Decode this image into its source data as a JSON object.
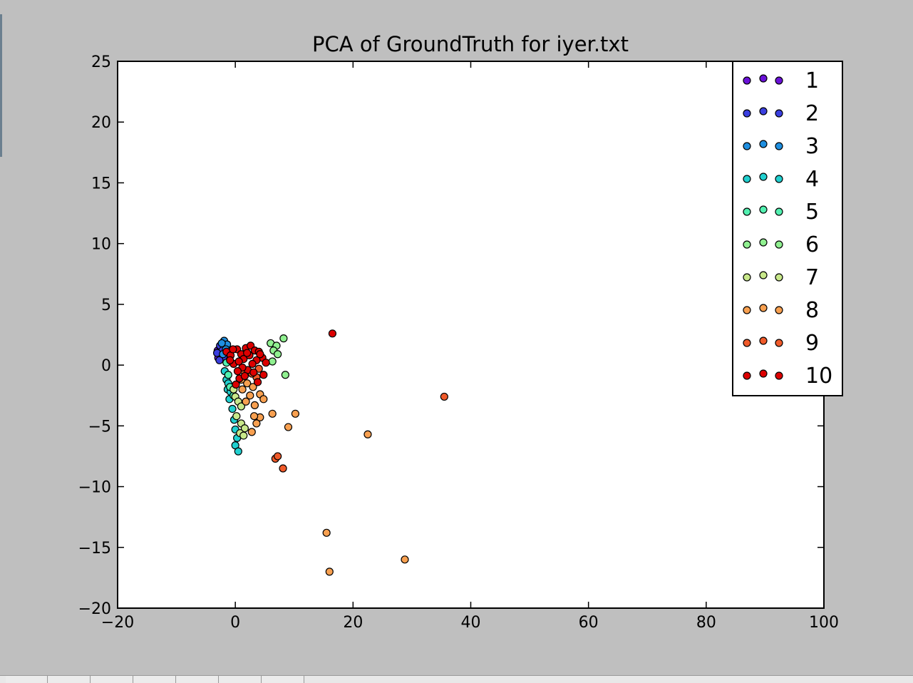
{
  "window": {
    "toolbar_buttons": 7
  },
  "chart_data": {
    "type": "scatter",
    "title": "PCA of GroundTruth for iyer.txt",
    "xlabel": "",
    "ylabel": "",
    "xlim": [
      -20,
      100
    ],
    "ylim": [
      -20,
      25
    ],
    "xticks": [
      "−20",
      "0",
      "20",
      "40",
      "60",
      "80",
      "100"
    ],
    "yticks": [
      "−20",
      "−15",
      "−10",
      "−5",
      "0",
      "5",
      "10",
      "15",
      "20",
      "25"
    ],
    "grid": false,
    "legend_position": "top-right",
    "series": [
      {
        "name": "1",
        "color": "#6a11d8",
        "points": [
          [
            -2.8,
            0.9
          ],
          [
            -3.0,
            1.2
          ],
          [
            -2.5,
            1.4
          ],
          [
            -2.9,
            0.6
          ]
        ]
      },
      {
        "name": "2",
        "color": "#3a3fe0",
        "points": [
          [
            -2.6,
            1.6
          ],
          [
            -2.2,
            1.2
          ],
          [
            -3.1,
            1.0
          ],
          [
            -2.0,
            0.7
          ],
          [
            -2.7,
            0.4
          ]
        ]
      },
      {
        "name": "3",
        "color": "#1f8fe0",
        "points": [
          [
            -1.9,
            2.0
          ],
          [
            -1.4,
            1.7
          ],
          [
            -2.3,
            1.8
          ],
          [
            -1.6,
            1.3
          ],
          [
            -2.1,
            0.9
          ]
        ]
      },
      {
        "name": "4",
        "color": "#21d0d0",
        "points": [
          [
            -1.8,
            -0.5
          ],
          [
            -1.5,
            -1.2
          ],
          [
            -1.3,
            -2.0
          ],
          [
            -1.0,
            -2.8
          ],
          [
            -0.5,
            -3.6
          ],
          [
            -0.2,
            -4.5
          ],
          [
            0.0,
            -5.3
          ],
          [
            0.3,
            -6.0
          ],
          [
            0.0,
            -6.6
          ],
          [
            0.5,
            -7.1
          ],
          [
            -1.2,
            -1.5
          ],
          [
            -0.8,
            -2.2
          ]
        ]
      },
      {
        "name": "5",
        "color": "#52f0b0",
        "points": [
          [
            -1.5,
            0.2
          ],
          [
            -1.2,
            -0.8
          ],
          [
            -0.9,
            -1.8
          ],
          [
            -0.3,
            -2.5
          ]
        ]
      },
      {
        "name": "6",
        "color": "#90f090",
        "points": [
          [
            6.0,
            1.8
          ],
          [
            7.0,
            1.6
          ],
          [
            8.2,
            2.2
          ],
          [
            6.5,
            1.2
          ],
          [
            7.2,
            0.9
          ],
          [
            6.3,
            0.3
          ],
          [
            8.5,
            -0.8
          ]
        ]
      },
      {
        "name": "7",
        "color": "#c8e88a",
        "points": [
          [
            0.0,
            -2.6
          ],
          [
            0.5,
            -3.0
          ],
          [
            1.0,
            -3.4
          ],
          [
            0.2,
            -4.2
          ],
          [
            1.0,
            -4.8
          ],
          [
            1.6,
            -5.2
          ],
          [
            0.8,
            -5.6
          ],
          [
            1.4,
            -5.8
          ],
          [
            -0.3,
            -2.0
          ]
        ]
      },
      {
        "name": "8",
        "color": "#f8a050",
        "points": [
          [
            15.5,
            -13.8
          ],
          [
            16.0,
            -17.0
          ],
          [
            28.8,
            -16.0
          ],
          [
            22.5,
            -5.7
          ],
          [
            10.2,
            -4.0
          ],
          [
            9.0,
            -5.1
          ],
          [
            6.3,
            -4.0
          ],
          [
            4.2,
            -4.3
          ],
          [
            3.2,
            -4.2
          ],
          [
            2.8,
            -5.5
          ],
          [
            3.6,
            -4.8
          ],
          [
            1.8,
            -3.0
          ],
          [
            2.5,
            -2.5
          ],
          [
            3.3,
            -3.3
          ],
          [
            4.2,
            -2.4
          ],
          [
            4.8,
            -2.8
          ],
          [
            1.2,
            -2.0
          ],
          [
            2.0,
            -1.5
          ],
          [
            3.0,
            -1.8
          ],
          [
            1.0,
            -1.2
          ]
        ]
      },
      {
        "name": "9",
        "color": "#f05a2a",
        "points": [
          [
            35.5,
            -2.6
          ],
          [
            6.8,
            -7.7
          ],
          [
            7.2,
            -7.5
          ],
          [
            8.1,
            -8.5
          ],
          [
            3.6,
            -1.0
          ],
          [
            2.8,
            -0.7
          ],
          [
            4.0,
            -0.3
          ],
          [
            1.5,
            -0.5
          ]
        ]
      },
      {
        "name": "10",
        "color": "#dd0000",
        "points": [
          [
            16.5,
            2.6
          ],
          [
            -1.5,
            1.1
          ],
          [
            -0.8,
            0.8
          ],
          [
            0.3,
            1.3
          ],
          [
            1.0,
            0.9
          ],
          [
            1.8,
            1.4
          ],
          [
            2.6,
            1.6
          ],
          [
            3.3,
            1.2
          ],
          [
            4.0,
            1.1
          ],
          [
            4.6,
            0.6
          ],
          [
            5.2,
            0.2
          ],
          [
            4.8,
            -0.8
          ],
          [
            3.6,
            0.4
          ],
          [
            2.9,
            0.1
          ],
          [
            2.1,
            -0.4
          ],
          [
            1.2,
            -0.2
          ],
          [
            0.4,
            -0.5
          ],
          [
            -0.3,
            0.1
          ],
          [
            0.7,
            -1.1
          ],
          [
            1.4,
            0.5
          ],
          [
            2.4,
            0.8
          ],
          [
            3.1,
            -0.6
          ],
          [
            0.1,
            -1.6
          ],
          [
            -0.9,
            0.4
          ],
          [
            -0.4,
            1.3
          ],
          [
            4.2,
            0.9
          ],
          [
            2.0,
            1.0
          ],
          [
            1.6,
            -0.9
          ],
          [
            0.6,
            0.3
          ],
          [
            3.8,
            -1.4
          ]
        ]
      }
    ]
  }
}
